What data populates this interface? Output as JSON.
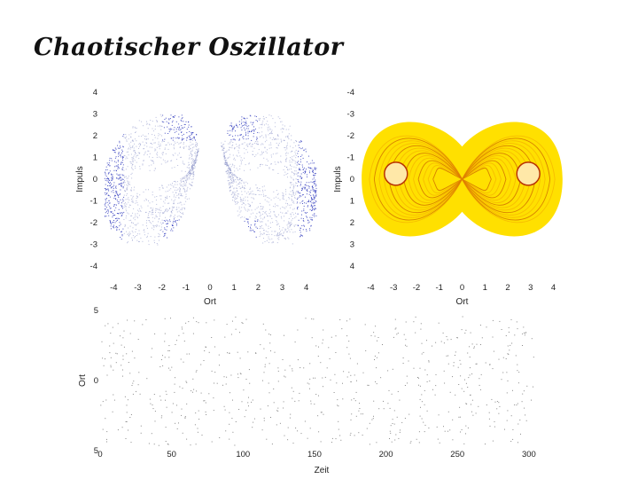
{
  "title": "Chaotischer Oszillator",
  "chart_data": [
    {
      "type": "scatter",
      "xlabel": "Ort",
      "ylabel": "Impuls",
      "x_ticks": [
        "-4",
        "-3",
        "-2",
        "-1",
        "0",
        "1",
        "2",
        "3",
        "4"
      ],
      "y_ticks": [
        "4",
        "3",
        "2",
        "1",
        "0",
        "-1",
        "-2",
        "-3",
        "-4"
      ],
      "xlim": [
        -4.6,
        4.6
      ],
      "ylim": [
        -4,
        4
      ],
      "grid": false,
      "attractor": {
        "a": 3.1,
        "p_scale": 2.8,
        "color": "#4a55c8"
      }
    },
    {
      "type": "heatmap",
      "xlabel": "Ort",
      "ylabel": "Impuls",
      "x_ticks": [
        "-4",
        "-3",
        "-2",
        "-1",
        "0",
        "1",
        "2",
        "3",
        "4"
      ],
      "y_ticks": [
        "-4",
        "-3",
        "-2",
        "-1",
        "0",
        "1",
        "2",
        "3",
        "4"
      ],
      "xlim": [
        -4.6,
        4.6
      ],
      "ylim": [
        -4,
        4
      ],
      "grid": false,
      "colors": {
        "low": "#ffe000",
        "mid": "#f0a000",
        "high": "#b83200",
        "hole": "#ffe8a8"
      }
    },
    {
      "type": "scatter",
      "xlabel": "Zeit",
      "ylabel": "Ort",
      "x_ticks": [
        "0",
        "50",
        "100",
        "150",
        "200",
        "250",
        "300"
      ],
      "y_ticks": [
        "5",
        "0",
        "5"
      ],
      "xlim": [
        0,
        310
      ],
      "ylim": [
        -5,
        5
      ],
      "grid": false,
      "x_max_data": 305,
      "color": "#555555"
    }
  ]
}
